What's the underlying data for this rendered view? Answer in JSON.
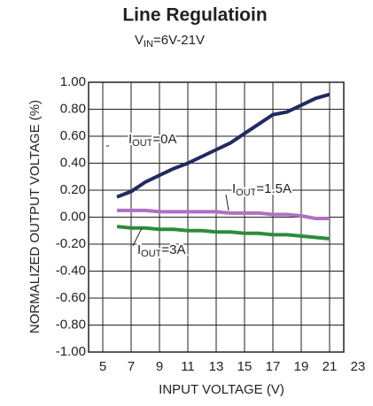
{
  "chart_data": {
    "type": "line",
    "title": "Line Regulatioin",
    "subtitle": "VIN=6V-21V",
    "x_label": "INPUT VOLTAGE (V)",
    "y_label": "NORMALIZED OUTPUT VOLTAGE (%)",
    "xlim": [
      4,
      22
    ],
    "xticks": [
      5,
      7,
      9,
      11,
      13,
      15,
      17,
      19,
      21,
      23
    ],
    "ylim": [
      -1,
      1
    ],
    "yticks": [
      {
        "value": -1,
        "label": "-1.00"
      },
      {
        "value": -0.8,
        "label": "-0.80"
      },
      {
        "value": -0.6,
        "label": "-0.60"
      },
      {
        "value": -0.4,
        "label": "-0.40"
      },
      {
        "value": -0.2,
        "label": "-0.20"
      },
      {
        "value": 0,
        "label": "0.00"
      },
      {
        "value": 0.2,
        "label": "0.20"
      },
      {
        "value": 0.4,
        "label": "0.40"
      },
      {
        "value": 0.6,
        "label": "0.60"
      },
      {
        "value": 0.8,
        "label": "0.80"
      },
      {
        "value": 1,
        "label": "1.00"
      }
    ],
    "grid": true,
    "x": [
      6,
      7,
      8,
      9,
      10,
      11,
      12,
      13,
      14,
      15,
      16,
      17,
      18,
      19,
      20,
      21
    ],
    "series": [
      {
        "name": "IOUT=0A",
        "color": "#232a5e",
        "values": [
          0.15,
          0.19,
          0.26,
          0.31,
          0.36,
          0.4,
          0.45,
          0.5,
          0.55,
          0.62,
          0.69,
          0.76,
          0.78,
          0.83,
          0.88,
          0.91
        ]
      },
      {
        "name": "IOUT=1.5A",
        "color": "#b070c4",
        "values": [
          0.05,
          0.05,
          0.05,
          0.04,
          0.04,
          0.04,
          0.04,
          0.04,
          0.03,
          0.03,
          0.03,
          0.02,
          0.02,
          0.01,
          -0.01,
          -0.01
        ]
      },
      {
        "name": "IOUT=3A",
        "color": "#2e8b3e",
        "values": [
          -0.07,
          -0.08,
          -0.08,
          -0.09,
          -0.09,
          -0.1,
          -0.1,
          -0.11,
          -0.11,
          -0.12,
          -0.12,
          -0.13,
          -0.13,
          -0.14,
          -0.15,
          -0.16
        ]
      }
    ]
  }
}
